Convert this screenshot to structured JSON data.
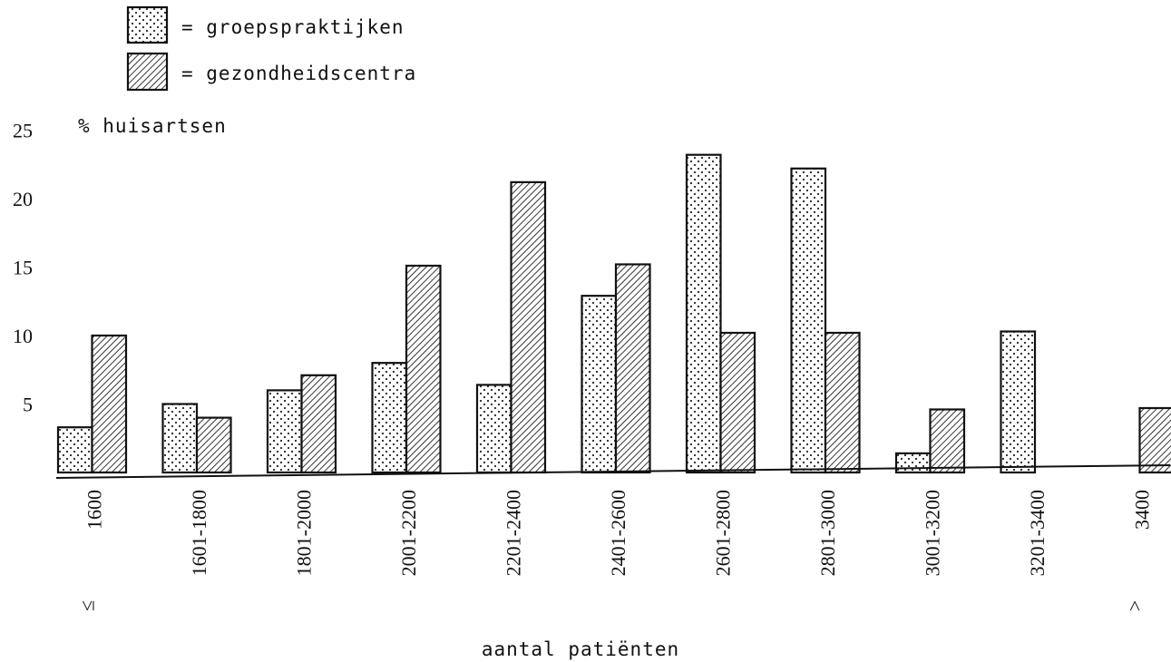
{
  "chart_data": {
    "type": "bar",
    "title": "",
    "ylabel": "% huisartsen",
    "xlabel": "aantal patiënten",
    "ylim": [
      0,
      25
    ],
    "yticks": [
      5,
      10,
      15,
      20,
      25
    ],
    "grid": false,
    "legend_position": "top-left",
    "categories": [
      {
        "label": "1600",
        "prefix": "≤"
      },
      {
        "label": "1601-1800",
        "prefix": ""
      },
      {
        "label": "1801-2000",
        "prefix": ""
      },
      {
        "label": "2001-2200",
        "prefix": ""
      },
      {
        "label": "2201-2400",
        "prefix": ""
      },
      {
        "label": "2401-2600",
        "prefix": ""
      },
      {
        "label": "2601-2800",
        "prefix": ""
      },
      {
        "label": "2801-3000",
        "prefix": ""
      },
      {
        "label": "3001-3200",
        "prefix": ""
      },
      {
        "label": "3201-3400",
        "prefix": ""
      },
      {
        "label": "3400",
        "prefix": ">"
      }
    ],
    "series": [
      {
        "name": "groepspraktijken",
        "legend_text": "= groepspraktijken",
        "pattern": "dots",
        "values": [
          3.3,
          5.0,
          6.0,
          8.0,
          6.4,
          12.9,
          23.2,
          22.2,
          1.4,
          10.3,
          0
        ]
      },
      {
        "name": "gezondheidscentra",
        "legend_text": "= gezondheidscentra",
        "pattern": "hatch",
        "values": [
          10.0,
          4.0,
          7.1,
          15.1,
          21.2,
          15.2,
          10.2,
          10.2,
          4.6,
          0,
          4.7
        ]
      }
    ]
  }
}
